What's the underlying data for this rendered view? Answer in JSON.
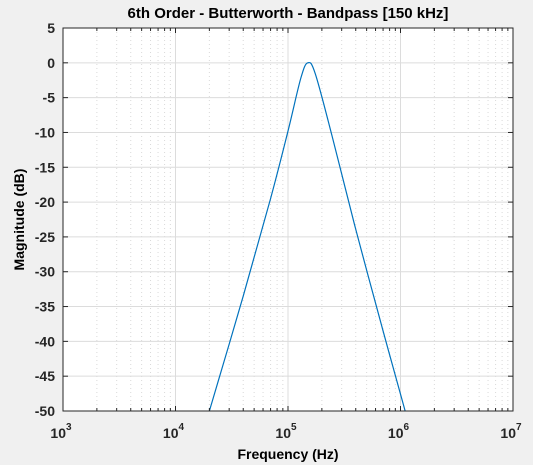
{
  "chart_data": {
    "type": "line",
    "title": "6th Order - Butterworth - Bandpass [150 kHz]",
    "xlabel": "Frequency  (Hz)",
    "ylabel": "Magnitude (dB)",
    "xscale": "log",
    "xlim": [
      1000,
      10000000
    ],
    "ylim": [
      -50,
      5
    ],
    "grid": true,
    "minor_grid": true,
    "x_ticks": [
      {
        "value": 1000,
        "base": "10",
        "exp": "3"
      },
      {
        "value": 10000,
        "base": "10",
        "exp": "4"
      },
      {
        "value": 100000,
        "base": "10",
        "exp": "5"
      },
      {
        "value": 1000000,
        "base": "10",
        "exp": "6"
      },
      {
        "value": 10000000,
        "base": "10",
        "exp": "7"
      }
    ],
    "y_ticks": [
      5,
      0,
      -5,
      -10,
      -15,
      -20,
      -25,
      -30,
      -35,
      -40,
      -45,
      -50
    ],
    "series": [
      {
        "color": "#0072bd",
        "x": [
          20000,
          40000,
          70000,
          100000,
          130000,
          150000,
          175000,
          250000,
          400000,
          700000,
          1100000
        ],
        "y": [
          -50,
          -33.5,
          -19.5,
          -9.8,
          -2.2,
          0,
          -1.6,
          -10.9,
          -23.9,
          -38.5,
          -50
        ]
      }
    ]
  }
}
